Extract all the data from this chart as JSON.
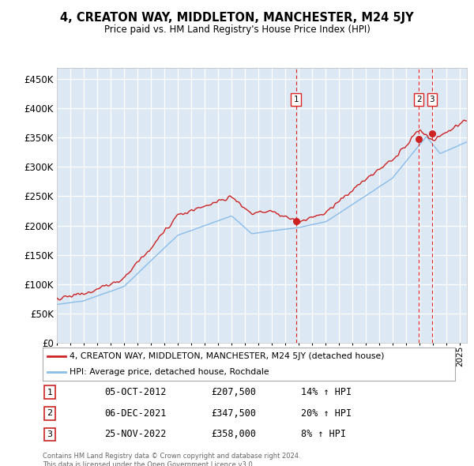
{
  "title": "4, CREATON WAY, MIDDLETON, MANCHESTER, M24 5JY",
  "subtitle": "Price paid vs. HM Land Registry's House Price Index (HPI)",
  "ylim": [
    0,
    470000
  ],
  "yticks": [
    0,
    50000,
    100000,
    150000,
    200000,
    250000,
    300000,
    350000,
    400000,
    450000
  ],
  "plot_bg_color": "#dce9f5",
  "grid_color": "#ffffff",
  "hpi_color": "#8bbce8",
  "price_color": "#cc2222",
  "trans_dates": [
    2012.79,
    2021.92,
    2022.9
  ],
  "trans_prices": [
    207500,
    347500,
    358000
  ],
  "trans_labels": [
    "1",
    "2",
    "3"
  ],
  "transaction_table": [
    {
      "num": "1",
      "date": "05-OCT-2012",
      "price": "£207,500",
      "hpi": "14% ↑ HPI"
    },
    {
      "num": "2",
      "date": "06-DEC-2021",
      "price": "£347,500",
      "hpi": "20% ↑ HPI"
    },
    {
      "num": "3",
      "date": "25-NOV-2022",
      "price": "£358,000",
      "hpi": "8% ↑ HPI"
    }
  ],
  "legend_label_red": "4, CREATON WAY, MIDDLETON, MANCHESTER, M24 5JY (detached house)",
  "legend_label_blue": "HPI: Average price, detached house, Rochdale",
  "footer": "Contains HM Land Registry data © Crown copyright and database right 2024.\nThis data is licensed under the Open Government Licence v3.0.",
  "xmin": 1995.0,
  "xmax": 2025.5
}
